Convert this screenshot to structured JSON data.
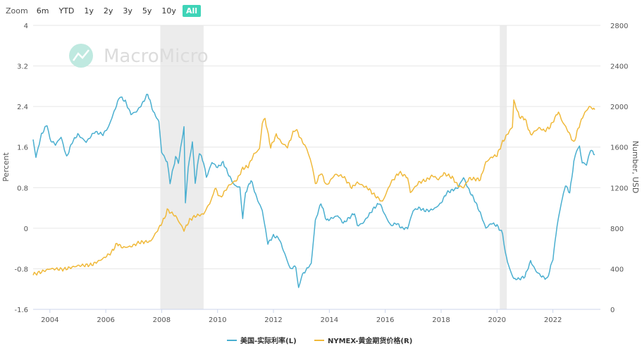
{
  "toolbar": {
    "zoom_label": "Zoom",
    "ranges": [
      "6m",
      "YTD",
      "1y",
      "2y",
      "3y",
      "5y",
      "10y",
      "All"
    ],
    "active": "All"
  },
  "watermark": "MacroMicro",
  "colors": {
    "real_rate": "#4aafd0",
    "gold": "#f0b93a",
    "recession": "#e6e6e6",
    "active_button": "#3fd4b8"
  },
  "chart_data": {
    "type": "line",
    "xlim": [
      2003.4,
      2023.7
    ],
    "x_ticks": [
      "2004",
      "2006",
      "2008",
      "2010",
      "2012",
      "2014",
      "2016",
      "2018",
      "2020",
      "2022"
    ],
    "y_left": {
      "label": "Percent",
      "ticks": [
        "-1.6",
        "-0.8",
        "0",
        "0.8",
        "1.6",
        "2.4",
        "3.2",
        "4"
      ],
      "ylim": [
        -1.6,
        4
      ]
    },
    "y_right": {
      "label": "Number, USD",
      "ticks": [
        "0",
        "400",
        "800",
        "1200",
        "1600",
        "2000",
        "2400",
        "2800"
      ],
      "ylim": [
        0,
        2800
      ]
    },
    "shaded_periods": [
      [
        2007.95,
        2009.5
      ],
      [
        2020.1,
        2020.35
      ]
    ],
    "series": [
      {
        "name": "美国-实际利率(L)",
        "axis": "left",
        "points": [
          [
            2003.4,
            1.75
          ],
          [
            2003.5,
            1.4
          ],
          [
            2003.7,
            1.85
          ],
          [
            2003.9,
            2.05
          ],
          [
            2004.0,
            1.75
          ],
          [
            2004.2,
            1.65
          ],
          [
            2004.4,
            1.8
          ],
          [
            2004.6,
            1.4
          ],
          [
            2004.8,
            1.7
          ],
          [
            2005.0,
            1.85
          ],
          [
            2005.3,
            1.7
          ],
          [
            2005.6,
            1.9
          ],
          [
            2005.9,
            1.85
          ],
          [
            2006.1,
            2.0
          ],
          [
            2006.3,
            2.3
          ],
          [
            2006.5,
            2.6
          ],
          [
            2006.7,
            2.5
          ],
          [
            2006.9,
            2.25
          ],
          [
            2007.1,
            2.3
          ],
          [
            2007.3,
            2.45
          ],
          [
            2007.5,
            2.65
          ],
          [
            2007.7,
            2.3
          ],
          [
            2007.9,
            2.1
          ],
          [
            2008.0,
            1.5
          ],
          [
            2008.2,
            1.3
          ],
          [
            2008.3,
            0.9
          ],
          [
            2008.5,
            1.4
          ],
          [
            2008.6,
            1.3
          ],
          [
            2008.8,
            2.0
          ],
          [
            2008.85,
            0.5
          ],
          [
            2008.95,
            1.2
          ],
          [
            2009.1,
            1.7
          ],
          [
            2009.2,
            0.9
          ],
          [
            2009.35,
            1.5
          ],
          [
            2009.5,
            1.3
          ],
          [
            2009.6,
            1.0
          ],
          [
            2009.8,
            1.3
          ],
          [
            2010.0,
            1.2
          ],
          [
            2010.2,
            1.3
          ],
          [
            2010.4,
            1.05
          ],
          [
            2010.6,
            0.85
          ],
          [
            2010.8,
            0.8
          ],
          [
            2010.9,
            0.2
          ],
          [
            2011.0,
            0.7
          ],
          [
            2011.2,
            0.95
          ],
          [
            2011.4,
            0.6
          ],
          [
            2011.6,
            0.35
          ],
          [
            2011.8,
            -0.3
          ],
          [
            2012.0,
            -0.15
          ],
          [
            2012.2,
            -0.2
          ],
          [
            2012.4,
            -0.5
          ],
          [
            2012.6,
            -0.8
          ],
          [
            2012.8,
            -0.75
          ],
          [
            2012.9,
            -1.2
          ],
          [
            2013.0,
            -0.95
          ],
          [
            2013.2,
            -0.8
          ],
          [
            2013.35,
            -0.7
          ],
          [
            2013.5,
            0.15
          ],
          [
            2013.7,
            0.5
          ],
          [
            2013.9,
            0.15
          ],
          [
            2014.1,
            0.2
          ],
          [
            2014.3,
            0.25
          ],
          [
            2014.5,
            0.1
          ],
          [
            2014.7,
            0.2
          ],
          [
            2014.9,
            0.3
          ],
          [
            2015.0,
            0.05
          ],
          [
            2015.2,
            0.1
          ],
          [
            2015.4,
            0.25
          ],
          [
            2015.6,
            0.4
          ],
          [
            2015.8,
            0.5
          ],
          [
            2016.0,
            0.25
          ],
          [
            2016.2,
            0.05
          ],
          [
            2016.4,
            0.1
          ],
          [
            2016.6,
            0.0
          ],
          [
            2016.8,
            0.0
          ],
          [
            2017.0,
            0.35
          ],
          [
            2017.2,
            0.4
          ],
          [
            2017.4,
            0.35
          ],
          [
            2017.6,
            0.35
          ],
          [
            2017.8,
            0.4
          ],
          [
            2018.0,
            0.5
          ],
          [
            2018.2,
            0.7
          ],
          [
            2018.4,
            0.75
          ],
          [
            2018.6,
            0.8
          ],
          [
            2018.8,
            1.0
          ],
          [
            2019.0,
            0.75
          ],
          [
            2019.2,
            0.55
          ],
          [
            2019.4,
            0.3
          ],
          [
            2019.6,
            0.0
          ],
          [
            2019.8,
            0.1
          ],
          [
            2020.0,
            0.05
          ],
          [
            2020.2,
            -0.1
          ],
          [
            2020.3,
            -0.5
          ],
          [
            2020.45,
            -0.8
          ],
          [
            2020.6,
            -1.0
          ],
          [
            2020.8,
            -1.0
          ],
          [
            2021.0,
            -0.95
          ],
          [
            2021.2,
            -0.65
          ],
          [
            2021.4,
            -0.85
          ],
          [
            2021.6,
            -0.95
          ],
          [
            2021.8,
            -1.0
          ],
          [
            2022.0,
            -0.6
          ],
          [
            2022.15,
            0.05
          ],
          [
            2022.3,
            0.5
          ],
          [
            2022.45,
            0.85
          ],
          [
            2022.6,
            0.7
          ],
          [
            2022.75,
            1.3
          ],
          [
            2022.85,
            1.55
          ],
          [
            2022.95,
            1.6
          ],
          [
            2023.05,
            1.3
          ],
          [
            2023.2,
            1.25
          ],
          [
            2023.35,
            1.55
          ],
          [
            2023.5,
            1.45
          ]
        ]
      },
      {
        "name": "NYMEX-黄金期货价格(R)",
        "axis": "right",
        "points": [
          [
            2003.4,
            345
          ],
          [
            2003.7,
            370
          ],
          [
            2004.0,
            400
          ],
          [
            2004.5,
            395
          ],
          [
            2005.0,
            430
          ],
          [
            2005.5,
            440
          ],
          [
            2005.9,
            500
          ],
          [
            2006.2,
            560
          ],
          [
            2006.4,
            650
          ],
          [
            2006.6,
            610
          ],
          [
            2006.9,
            620
          ],
          [
            2007.2,
            660
          ],
          [
            2007.6,
            670
          ],
          [
            2007.9,
            800
          ],
          [
            2008.1,
            900
          ],
          [
            2008.2,
            980
          ],
          [
            2008.5,
            920
          ],
          [
            2008.8,
            780
          ],
          [
            2009.0,
            880
          ],
          [
            2009.2,
            920
          ],
          [
            2009.5,
            940
          ],
          [
            2009.8,
            1090
          ],
          [
            2009.9,
            1200
          ],
          [
            2010.1,
            1100
          ],
          [
            2010.4,
            1220
          ],
          [
            2010.7,
            1280
          ],
          [
            2010.9,
            1390
          ],
          [
            2011.1,
            1410
          ],
          [
            2011.3,
            1530
          ],
          [
            2011.5,
            1580
          ],
          [
            2011.6,
            1840
          ],
          [
            2011.7,
            1880
          ],
          [
            2011.9,
            1600
          ],
          [
            2012.1,
            1720
          ],
          [
            2012.3,
            1640
          ],
          [
            2012.5,
            1600
          ],
          [
            2012.7,
            1740
          ],
          [
            2012.8,
            1780
          ],
          [
            2013.0,
            1670
          ],
          [
            2013.2,
            1580
          ],
          [
            2013.4,
            1400
          ],
          [
            2013.5,
            1230
          ],
          [
            2013.7,
            1350
          ],
          [
            2013.9,
            1220
          ],
          [
            2014.2,
            1330
          ],
          [
            2014.5,
            1310
          ],
          [
            2014.8,
            1200
          ],
          [
            2015.0,
            1250
          ],
          [
            2015.4,
            1190
          ],
          [
            2015.6,
            1130
          ],
          [
            2015.9,
            1060
          ],
          [
            2016.2,
            1250
          ],
          [
            2016.5,
            1350
          ],
          [
            2016.8,
            1300
          ],
          [
            2016.9,
            1150
          ],
          [
            2017.2,
            1250
          ],
          [
            2017.5,
            1280
          ],
          [
            2017.7,
            1320
          ],
          [
            2017.9,
            1280
          ],
          [
            2018.1,
            1340
          ],
          [
            2018.4,
            1300
          ],
          [
            2018.6,
            1220
          ],
          [
            2018.8,
            1200
          ],
          [
            2019.0,
            1290
          ],
          [
            2019.4,
            1280
          ],
          [
            2019.6,
            1450
          ],
          [
            2019.8,
            1500
          ],
          [
            2020.0,
            1520
          ],
          [
            2020.2,
            1650
          ],
          [
            2020.4,
            1740
          ],
          [
            2020.55,
            1800
          ],
          [
            2020.6,
            2060
          ],
          [
            2020.8,
            1900
          ],
          [
            2021.0,
            1880
          ],
          [
            2021.2,
            1720
          ],
          [
            2021.5,
            1790
          ],
          [
            2021.7,
            1760
          ],
          [
            2021.9,
            1800
          ],
          [
            2022.2,
            1950
          ],
          [
            2022.3,
            1870
          ],
          [
            2022.5,
            1780
          ],
          [
            2022.75,
            1640
          ],
          [
            2022.9,
            1780
          ],
          [
            2023.1,
            1920
          ],
          [
            2023.3,
            2000
          ],
          [
            2023.5,
            1970
          ]
        ]
      }
    ]
  }
}
